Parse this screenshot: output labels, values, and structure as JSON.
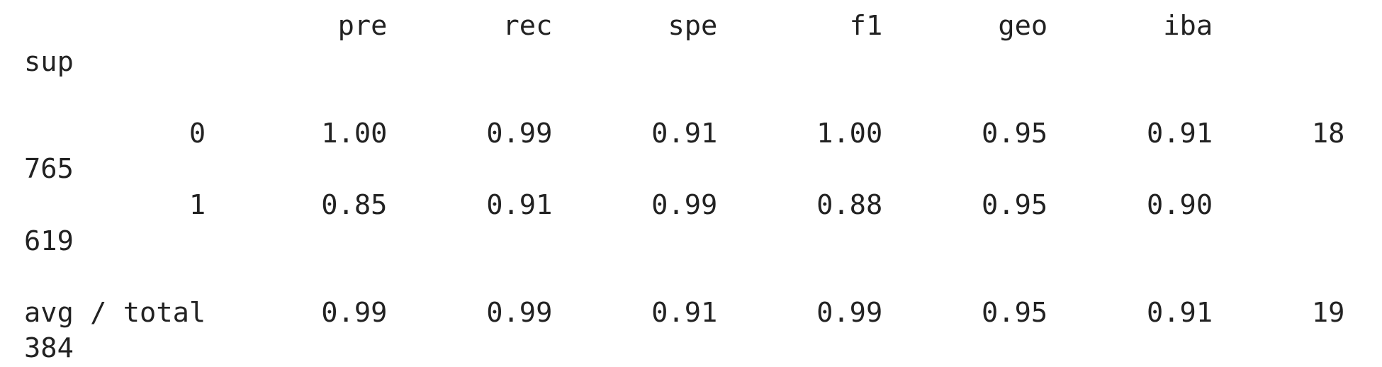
{
  "header": [
    "pre",
    "rec",
    "spe",
    "f1",
    "geo",
    "iba",
    "sup"
  ],
  "rows": [
    {
      "label": "0",
      "values": [
        "1.00",
        "0.99",
        "0.91",
        "1.00",
        "0.95",
        "0.91",
        "18765"
      ]
    },
    {
      "label": "1",
      "values": [
        "0.85",
        "0.91",
        "0.99",
        "0.88",
        "0.95",
        "0.90",
        "619"
      ]
    },
    {
      "label": "avg / total",
      "values": [
        "0.99",
        "0.99",
        "0.91",
        "0.99",
        "0.95",
        "0.91",
        "19384"
      ]
    }
  ]
}
